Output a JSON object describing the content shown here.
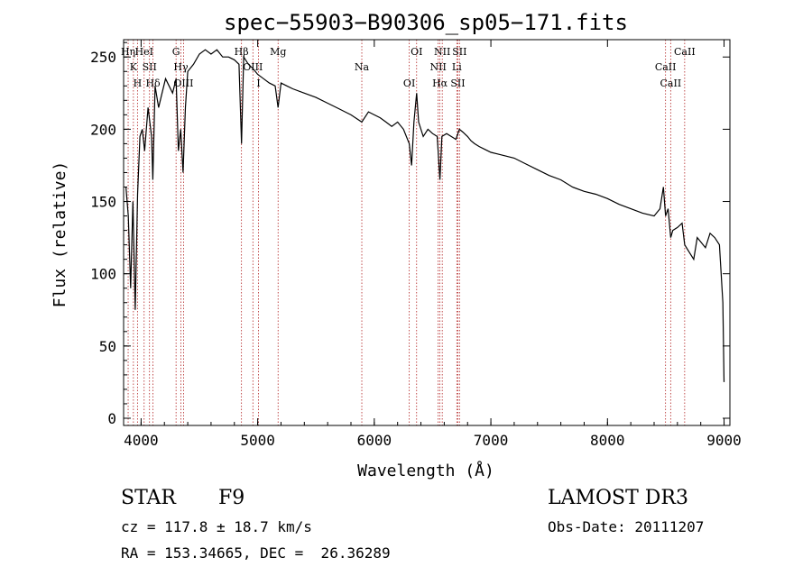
{
  "chart_data": {
    "type": "line",
    "title": "spec−55903−B90306_sp05−171.fits",
    "xlabel": "Wavelength (Å)",
    "ylabel": "Flux (relative)",
    "xlim": [
      3850,
      9050
    ],
    "ylim": [
      -5,
      262
    ],
    "x_ticks": [
      4000,
      5000,
      6000,
      7000,
      8000,
      9000
    ],
    "y_ticks": [
      0,
      50,
      100,
      150,
      200,
      250
    ],
    "grid": false,
    "series": [
      {
        "name": "flux",
        "x": [
          3870,
          3890,
          3910,
          3930,
          3950,
          3970,
          3990,
          4010,
          4030,
          4060,
          4090,
          4101,
          4120,
          4150,
          4180,
          4210,
          4240,
          4270,
          4300,
          4320,
          4340,
          4360,
          4380,
          4400,
          4450,
          4500,
          4550,
          4600,
          4650,
          4700,
          4750,
          4800,
          4840,
          4861,
          4880,
          4920,
          4960,
          5000,
          5050,
          5100,
          5150,
          5175,
          5200,
          5250,
          5300,
          5400,
          5500,
          5600,
          5700,
          5800,
          5893,
          5950,
          6000,
          6050,
          6100,
          6150,
          6200,
          6250,
          6300,
          6320,
          6340,
          6363,
          6380,
          6420,
          6460,
          6500,
          6540,
          6563,
          6580,
          6620,
          6660,
          6700,
          6730,
          6760,
          6800,
          6830,
          6860,
          6900,
          6950,
          7000,
          7050,
          7100,
          7200,
          7300,
          7400,
          7500,
          7600,
          7700,
          7800,
          7900,
          8000,
          8100,
          8200,
          8300,
          8400,
          8450,
          8480,
          8498,
          8520,
          8542,
          8560,
          8600,
          8640,
          8662,
          8700,
          8740,
          8770,
          8800,
          8840,
          8880,
          8920,
          8960,
          8990,
          9000
        ],
        "y": [
          160,
          140,
          90,
          150,
          75,
          155,
          195,
          200,
          185,
          215,
          195,
          165,
          230,
          215,
          225,
          235,
          230,
          225,
          235,
          185,
          200,
          170,
          215,
          240,
          245,
          252,
          255,
          252,
          255,
          250,
          250,
          248,
          245,
          190,
          250,
          245,
          242,
          238,
          235,
          232,
          230,
          215,
          232,
          230,
          228,
          225,
          222,
          218,
          214,
          210,
          205,
          212,
          210,
          208,
          205,
          202,
          205,
          200,
          190,
          175,
          205,
          225,
          205,
          195,
          200,
          197,
          195,
          165,
          195,
          197,
          195,
          193,
          200,
          198,
          195,
          192,
          190,
          188,
          186,
          184,
          183,
          182,
          180,
          176,
          172,
          168,
          165,
          160,
          157,
          155,
          152,
          148,
          145,
          142,
          140,
          145,
          160,
          140,
          145,
          125,
          130,
          132,
          135,
          120,
          115,
          110,
          125,
          122,
          118,
          128,
          125,
          120,
          80,
          25
        ]
      }
    ],
    "line_markers": [
      {
        "wl": 3889,
        "label": "Hη"
      },
      {
        "wl": 3934,
        "label": "K"
      },
      {
        "wl": 3969,
        "label": "H"
      },
      {
        "wl": 4026,
        "label": "HeI"
      },
      {
        "wl": 4072,
        "label": "SII"
      },
      {
        "wl": 4102,
        "label": "Hδ"
      },
      {
        "wl": 4300,
        "label": "G"
      },
      {
        "wl": 4341,
        "label": "Hγ"
      },
      {
        "wl": 4364,
        "label": "OIII"
      },
      {
        "wl": 4861,
        "label": "Hβ"
      },
      {
        "wl": 4959,
        "label": "OIII"
      },
      {
        "wl": 5007,
        "label": "I"
      },
      {
        "wl": 5175,
        "label": "Mg"
      },
      {
        "wl": 5893,
        "label": "Na"
      },
      {
        "wl": 6300,
        "label": "OI"
      },
      {
        "wl": 6363,
        "label": "OI"
      },
      {
        "wl": 6548,
        "label": "NII"
      },
      {
        "wl": 6563,
        "label": "Hα"
      },
      {
        "wl": 6583,
        "label": "NII"
      },
      {
        "wl": 6708,
        "label": "Li"
      },
      {
        "wl": 6717,
        "label": "SII"
      },
      {
        "wl": 6731,
        "label": "SII"
      },
      {
        "wl": 8498,
        "label": "CaII"
      },
      {
        "wl": 8542,
        "label": "CaII"
      },
      {
        "wl": 8662,
        "label": "CaII"
      }
    ]
  },
  "info": {
    "class": "STAR",
    "subclass": "F9",
    "survey": "LAMOST DR3",
    "cz": "cz = 117.8 ± 18.7 km/s",
    "obs_date": "Obs-Date: 20111207",
    "coords": "RA = 153.34665, DEC =  26.36289"
  },
  "colors": {
    "line": "#000000",
    "marker": "#b22222",
    "axis": "#000000"
  }
}
